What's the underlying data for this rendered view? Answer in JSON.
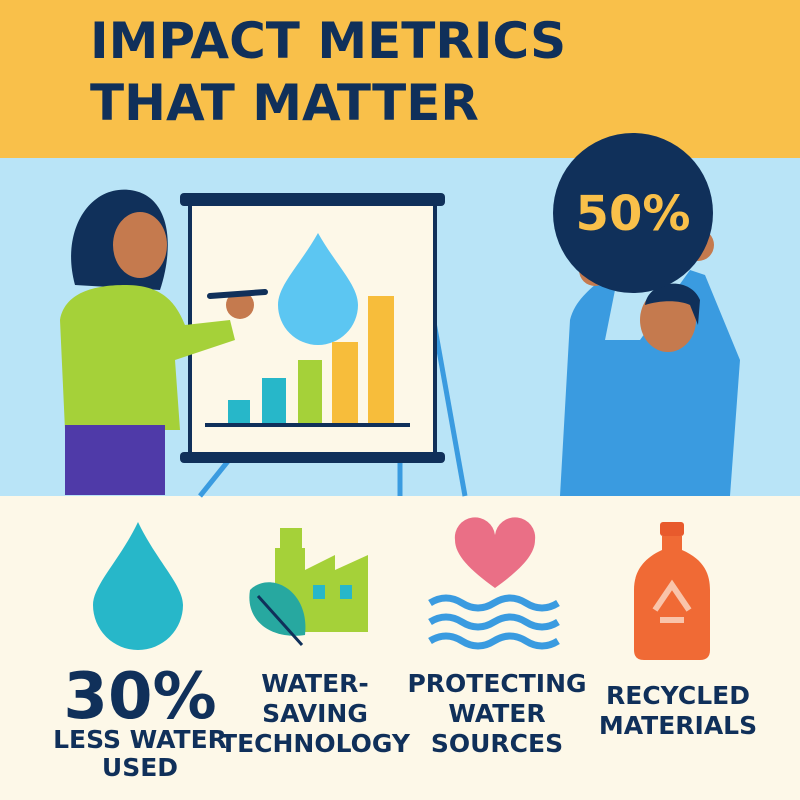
{
  "header": {
    "title_lines": [
      "IMPACT METRICS",
      "THAT MATTER"
    ]
  },
  "badge": "50%",
  "items": [
    {
      "stat": "30%",
      "label_lines": [
        "LESS WATER",
        "USED"
      ]
    },
    {
      "label_lines": [
        "WATER-",
        "SAVING",
        "TECHNOLOGY"
      ]
    },
    {
      "label_lines": [
        "PROTECTING",
        "WATER",
        "SOURCES"
      ]
    },
    {
      "label_lines": [
        "RECYCLED",
        "MATERIALS"
      ]
    }
  ]
}
